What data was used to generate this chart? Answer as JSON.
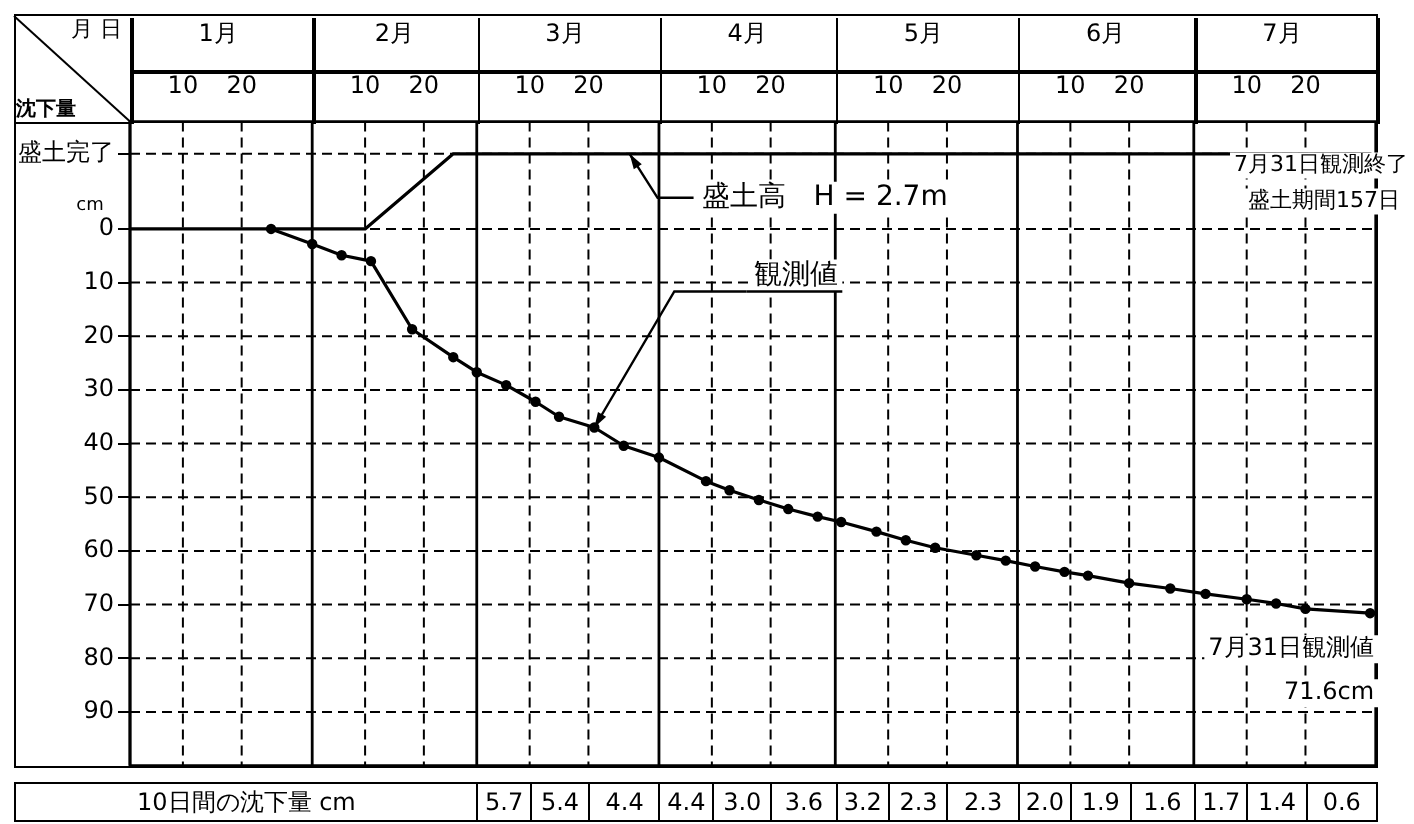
{
  "chart_data": [
    {
      "type": "line",
      "xlabel": "月 日",
      "ylabel": "沈下量",
      "xlim": [
        "--01-01",
        "--08-01"
      ],
      "xticks": [
        {
          "value": "--01-01",
          "label": null
        },
        {
          "value": "--01-10",
          "label": "10"
        },
        {
          "value": "--01-20",
          "label": "20"
        },
        {
          "value": "--02-01",
          "label": null
        },
        {
          "value": "--02-10",
          "label": "10"
        },
        {
          "value": "--02-20",
          "label": "20"
        },
        {
          "value": "--03-01",
          "label": null
        },
        {
          "value": "--03-10",
          "label": "10"
        },
        {
          "value": "--03-20",
          "label": "20"
        },
        {
          "value": "--04-01",
          "label": null
        },
        {
          "value": "--04-10",
          "label": "10"
        },
        {
          "value": "--04-20",
          "label": "20"
        },
        {
          "value": "--05-01",
          "label": null
        },
        {
          "value": "--05-10",
          "label": "10"
        },
        {
          "value": "--05-20",
          "label": "20"
        },
        {
          "value": "--06-01",
          "label": null
        },
        {
          "value": "--06-10",
          "label": "10"
        },
        {
          "value": "--06-20",
          "label": "20"
        },
        {
          "value": "--07-01",
          "label": null
        },
        {
          "value": "--07-10",
          "label": "10"
        },
        {
          "value": "--07-20",
          "label": "20"
        },
        {
          "value": "--08-01",
          "label": null
        }
      ],
      "x2lim": [
        "--01-01",
        "--08-01"
      ],
      "x2ticks": [
        {
          "value": "--01-16",
          "label": "1月"
        },
        {
          "value": "--02-15",
          "label": "2月"
        },
        {
          "value": "--03-16",
          "label": "3月"
        },
        {
          "value": "--04-16",
          "label": "4月"
        },
        {
          "value": "--05-16",
          "label": "5月"
        },
        {
          "value": "--06-16",
          "label": "6月"
        },
        {
          "value": "--07-16",
          "label": "7月"
        }
      ],
      "ylim": [
        100,
        -20
      ],
      "yticks": [
        {
          "value": -14,
          "label": "盛土完了"
        },
        0,
        10,
        20,
        30,
        40,
        50,
        60,
        70,
        80,
        90
      ],
      "grid": true,
      "legend": false,
      "marker": "circle",
      "line_style": "solid",
      "series": [
        {
          "color": "#000000",
          "marker": "none",
          "x": [
            "--01-01",
            "--02-10",
            "--02-25",
            "--07-31"
          ],
          "values": [
            0,
            0,
            -14,
            -14
          ]
        },
        {
          "color": "#000000",
          "x": [
            "--01-25",
            "--02-01",
            "--02-06",
            "--02-11",
            "--02-18",
            "--02-25",
            "--03-01",
            "--03-06",
            "--03-11",
            "--03-15",
            "--03-21",
            "--03-26",
            "--04-01",
            "--04-09",
            "--04-13",
            "--04-18",
            "--04-23",
            "--04-28",
            "--05-02",
            "--05-08",
            "--05-13",
            "--05-18",
            "--05-25",
            "--05-30",
            "--06-04",
            "--06-09",
            "--06-13",
            "--06-20",
            "--06-27",
            "--07-03",
            "--07-10",
            "--07-15",
            "--07-20",
            "--07-31"
          ],
          "values": [
            0,
            2.8,
            4.9,
            6,
            18.7,
            23.9,
            26.7,
            29.1,
            32.2,
            35,
            37,
            40.4,
            42.6,
            47,
            48.7,
            50.5,
            52.2,
            53.6,
            54.6,
            56.4,
            58,
            59.4,
            60.8,
            61.8,
            62.9,
            63.9,
            64.6,
            66,
            67,
            68,
            69,
            69.8,
            70.8,
            71.6
          ]
        }
      ],
      "annotations": [
        "cm",
        {
          "text": "盛土高　H = 2.7m",
          "x": "--03-27",
          "y": -14
        },
        {
          "text": "観測値",
          "x": "--03-21",
          "y": 37
        },
        "7月31日観測終了",
        "盛土期間157日",
        {
          "text": "7月31日観測値\n71.6cm",
          "x": "--07-31",
          "y": 71.6
        }
      ]
    },
    {
      "type": "other",
      "title": "10日間の沈下量 cm",
      "categories": [
        null,
        null,
        null,
        null,
        null,
        null,
        null,
        null,
        null,
        null,
        null,
        null,
        null,
        null,
        null
      ],
      "values": [
        5.7,
        5.4,
        4.4,
        4.4,
        3.0,
        3.6,
        3.2,
        2.3,
        2.3,
        2.0,
        1.9,
        1.6,
        1.7,
        1.4,
        0.6
      ],
      "value_labels": [
        "5.7",
        "5.4",
        "4.4",
        "4.4",
        "3.0",
        "3.6",
        "3.2",
        "2.3",
        "2.3",
        "2.0",
        "1.9",
        "1.6",
        "1.7",
        "1.4",
        "0.6"
      ]
    }
  ]
}
